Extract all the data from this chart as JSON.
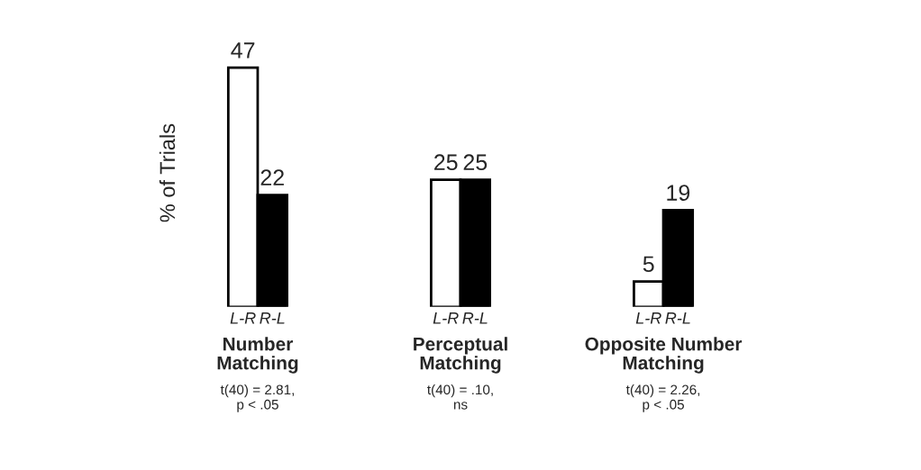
{
  "chart_data": {
    "type": "bar",
    "ylabel": "% of Trials",
    "categories": [
      "L-R",
      "R-L",
      "L-R",
      "R-L",
      "L-R",
      "R-L"
    ],
    "values": [
      47,
      22,
      25,
      25,
      5,
      19
    ],
    "colors": [
      "#ffffff",
      "#000000",
      "#ffffff",
      "#000000",
      "#ffffff",
      "#000000"
    ],
    "data_labels": true,
    "tick_labels": "x",
    "annotations": [
      "Number\nMatching",
      "Perceptual\nMatching",
      "Opposite Number\nMatching",
      "t(40) = 2.81,\np < .05",
      "t(40) = .10,\nns",
      "t(40) = 2.26,\np < .05"
    ]
  }
}
